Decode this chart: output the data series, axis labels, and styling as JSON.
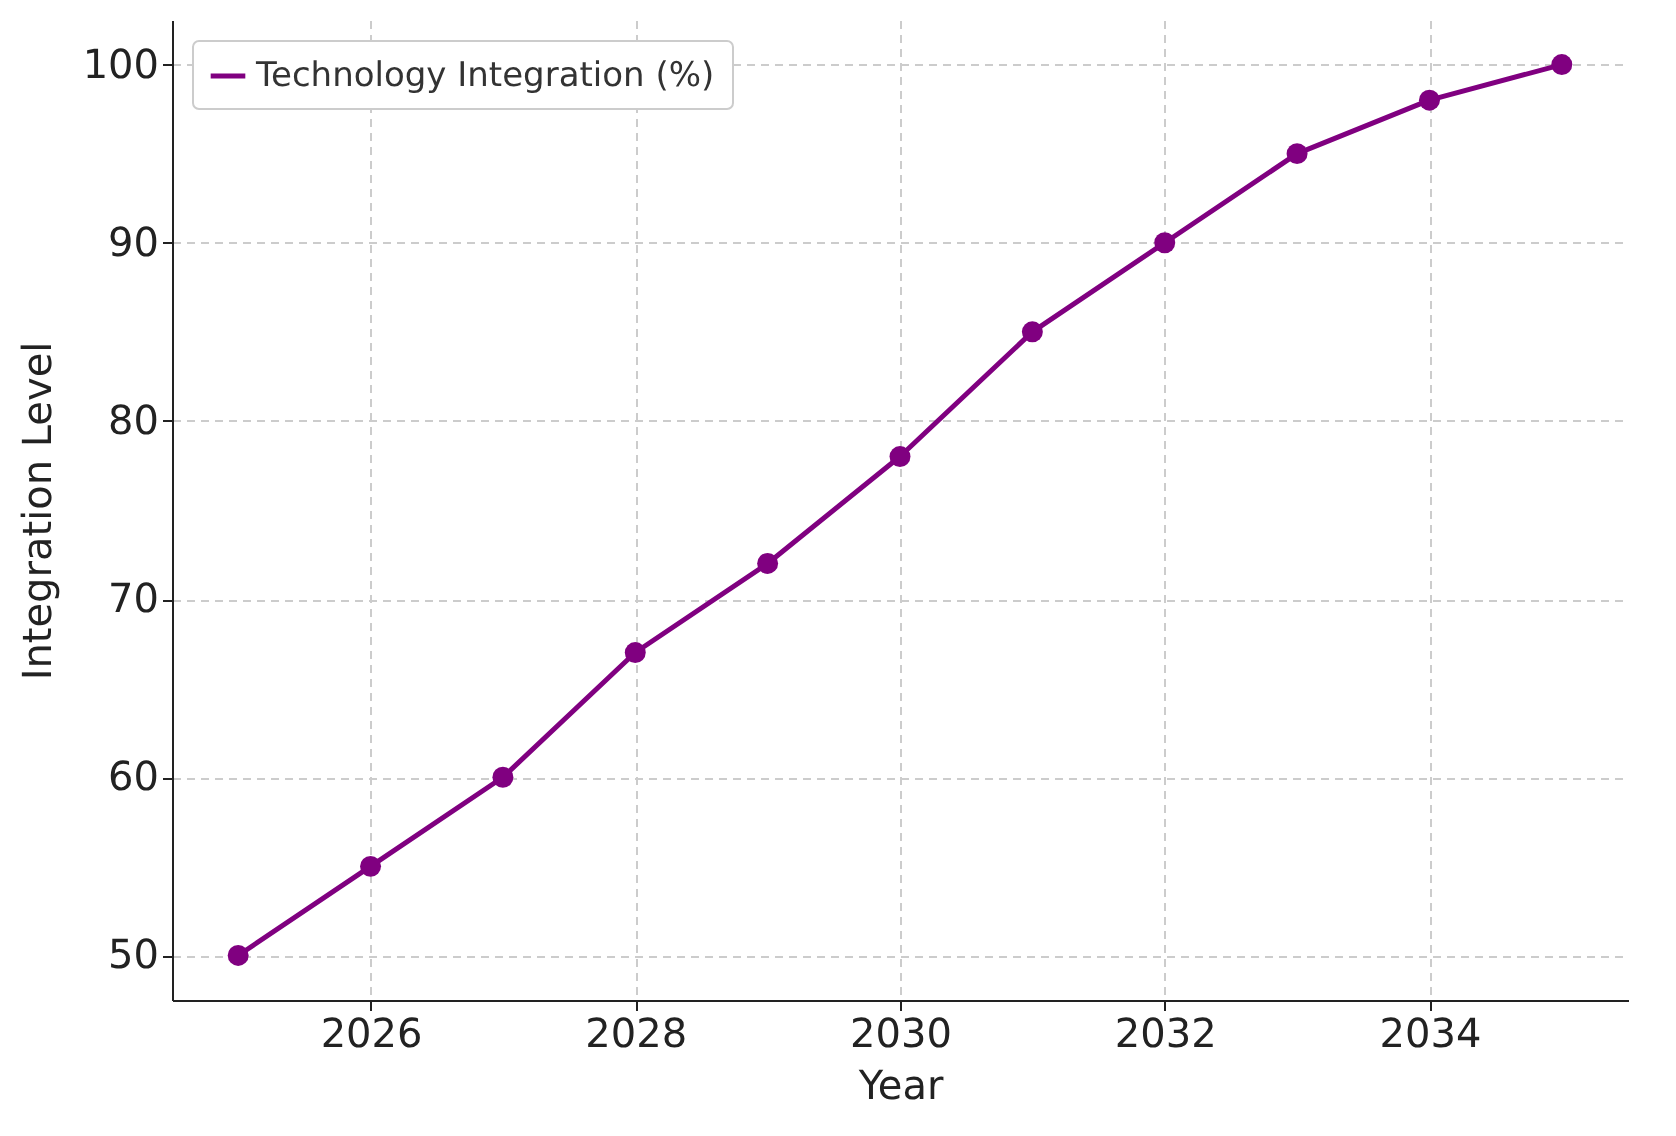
{
  "chart_data": {
    "type": "line",
    "xlabel": "Year",
    "ylabel": "Integration Level",
    "x": [
      2025,
      2026,
      2027,
      2028,
      2029,
      2030,
      2031,
      2032,
      2033,
      2034,
      2035
    ],
    "series": [
      {
        "name": "Technology Integration (%)",
        "color": "#800080",
        "values": [
          50,
          55,
          60,
          67,
          72,
          78,
          85,
          90,
          95,
          98,
          100
        ]
      }
    ],
    "xlim": [
      2024.5,
      2035.5
    ],
    "xticks": [
      2026,
      2028,
      2030,
      2032,
      2034
    ],
    "ylim": [
      47.5,
      102.5
    ],
    "yticks": [
      50,
      60,
      70,
      80,
      90,
      100
    ],
    "grid": true,
    "legend": "top left",
    "marker": "circle",
    "line_style": "solid"
  }
}
